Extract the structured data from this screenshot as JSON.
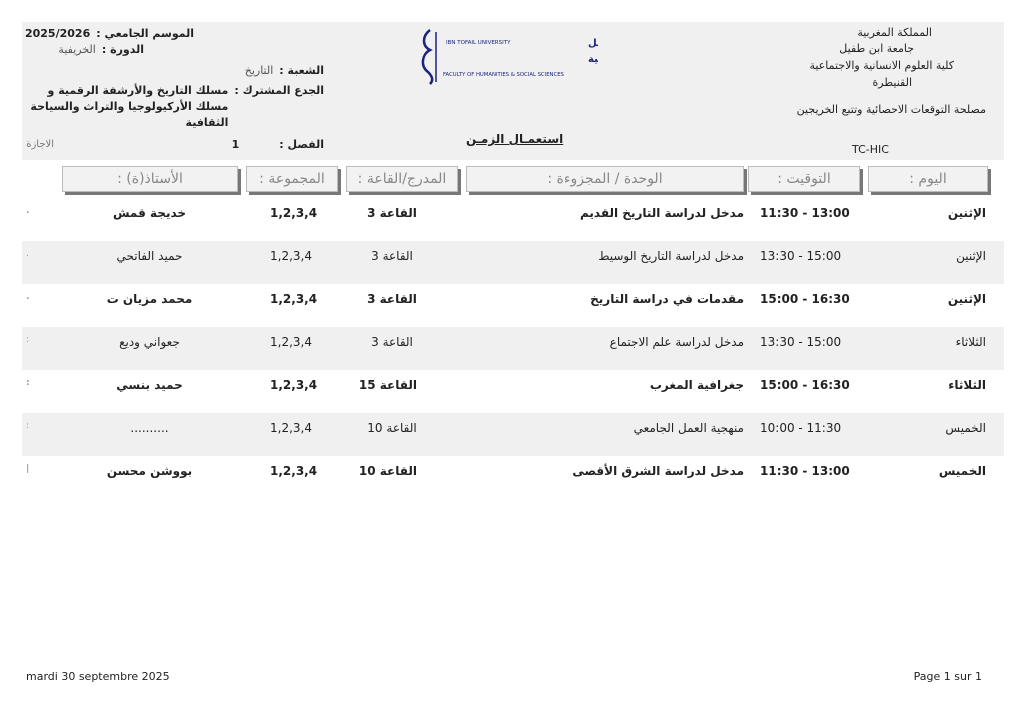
{
  "header_left": {
    "season_label": "الموسم الجامعي :",
    "season_value": "2025/2026",
    "session_label": "الدورة :",
    "session_value": "الخريفية",
    "department_label": "الشعبة :",
    "department_value": "التاريخ",
    "common_core_label": "الجدع المشترك :",
    "common_core_value_line1": "مسلك التاريخ والأرشفة الرقمية و",
    "common_core_value_line2": "مسلك  الأركيولوجيا والتراث والسياحة",
    "common_core_value_line3": "الثقافية",
    "semester_label": "الفصل :",
    "semester_value": "1",
    "degree": "الاجازة"
  },
  "header_right": {
    "line1": "المملكة المغربية",
    "line2": "جامعة ابن طفيل",
    "line3": "كلية العلوم الانسانية والاجتماعية",
    "line4": "القنيطرة",
    "service": "مصلحة التوقعات الاحصائية وتتبع الخريجين",
    "code": "TC-HIC"
  },
  "logo": {
    "line1_en": "IBN TOFAIL UNIVERSITY",
    "line1_ar": "جامعة ابن طفيل",
    "line2_ar": "كلية العلوم الإنسانية و الاجتماعية",
    "line3_en": "FACULTY OF HUMANITIES & SOCIAL SCIENCES"
  },
  "title": "استعمـال الزمـن",
  "columns": {
    "day": "اليوم :",
    "time": "التوقيت :",
    "module": "الوحدة / المجزوءة :",
    "room": "المدرج/القاعة :",
    "group": "المجموعة :",
    "teacher": "الأستاذ(ة) :"
  },
  "rows": [
    {
      "day": "الإثنين",
      "time": "11:30 - 13:00",
      "module": "مدخل لدراسة التاريخ القديم",
      "room": "القاعة 3",
      "group": "1,2,3,4",
      "teacher": "خديجة قمش",
      "edge": "."
    },
    {
      "day": "الإثنين",
      "time": "13:30 - 15:00",
      "module": "مدخل لدراسة التاريخ الوسيط",
      "room": "القاعة 3",
      "group": "1,2,3,4",
      "teacher": "حميد الفاتحي",
      "edge": "."
    },
    {
      "day": "الإثنين",
      "time": "15:00 - 16:30",
      "module": "مقدمات في دراسة التاريخ",
      "room": "القاعة 3",
      "group": "1,2,3,4",
      "teacher": "محمد مزيان ت",
      "edge": "."
    },
    {
      "day": "الثلاثاء",
      "time": "13:30 - 15:00",
      "module": "مدخل لدراسة علم الاجتماع",
      "room": "القاعة 3",
      "group": "1,2,3,4",
      "teacher": "جعواني وديع",
      "edge": ":"
    },
    {
      "day": "الثلاثاء",
      "time": "15:00 - 16:30",
      "module": "جغرافية المغرب",
      "room": "القاعة 15",
      "group": "1,2,3,4",
      "teacher": "حميد بنسي",
      "edge": ":"
    },
    {
      "day": "الخميس",
      "time": "10:00 - 11:30",
      "module": "منهجية العمل الجامعي",
      "room": "القاعة 10",
      "group": "1,2,3,4",
      "teacher": "..........",
      "edge": ":"
    },
    {
      "day": "الخميس",
      "time": "11:30 - 13:00",
      "module": "مدخل لدراسة الشرق الأقصى",
      "room": "القاعة 10",
      "group": "1,2,3,4",
      "teacher": "بووشن محسن",
      "edge": "|"
    }
  ],
  "footer": {
    "date": "mardi 30 septembre 2025",
    "page": "Page 1 sur 1"
  }
}
